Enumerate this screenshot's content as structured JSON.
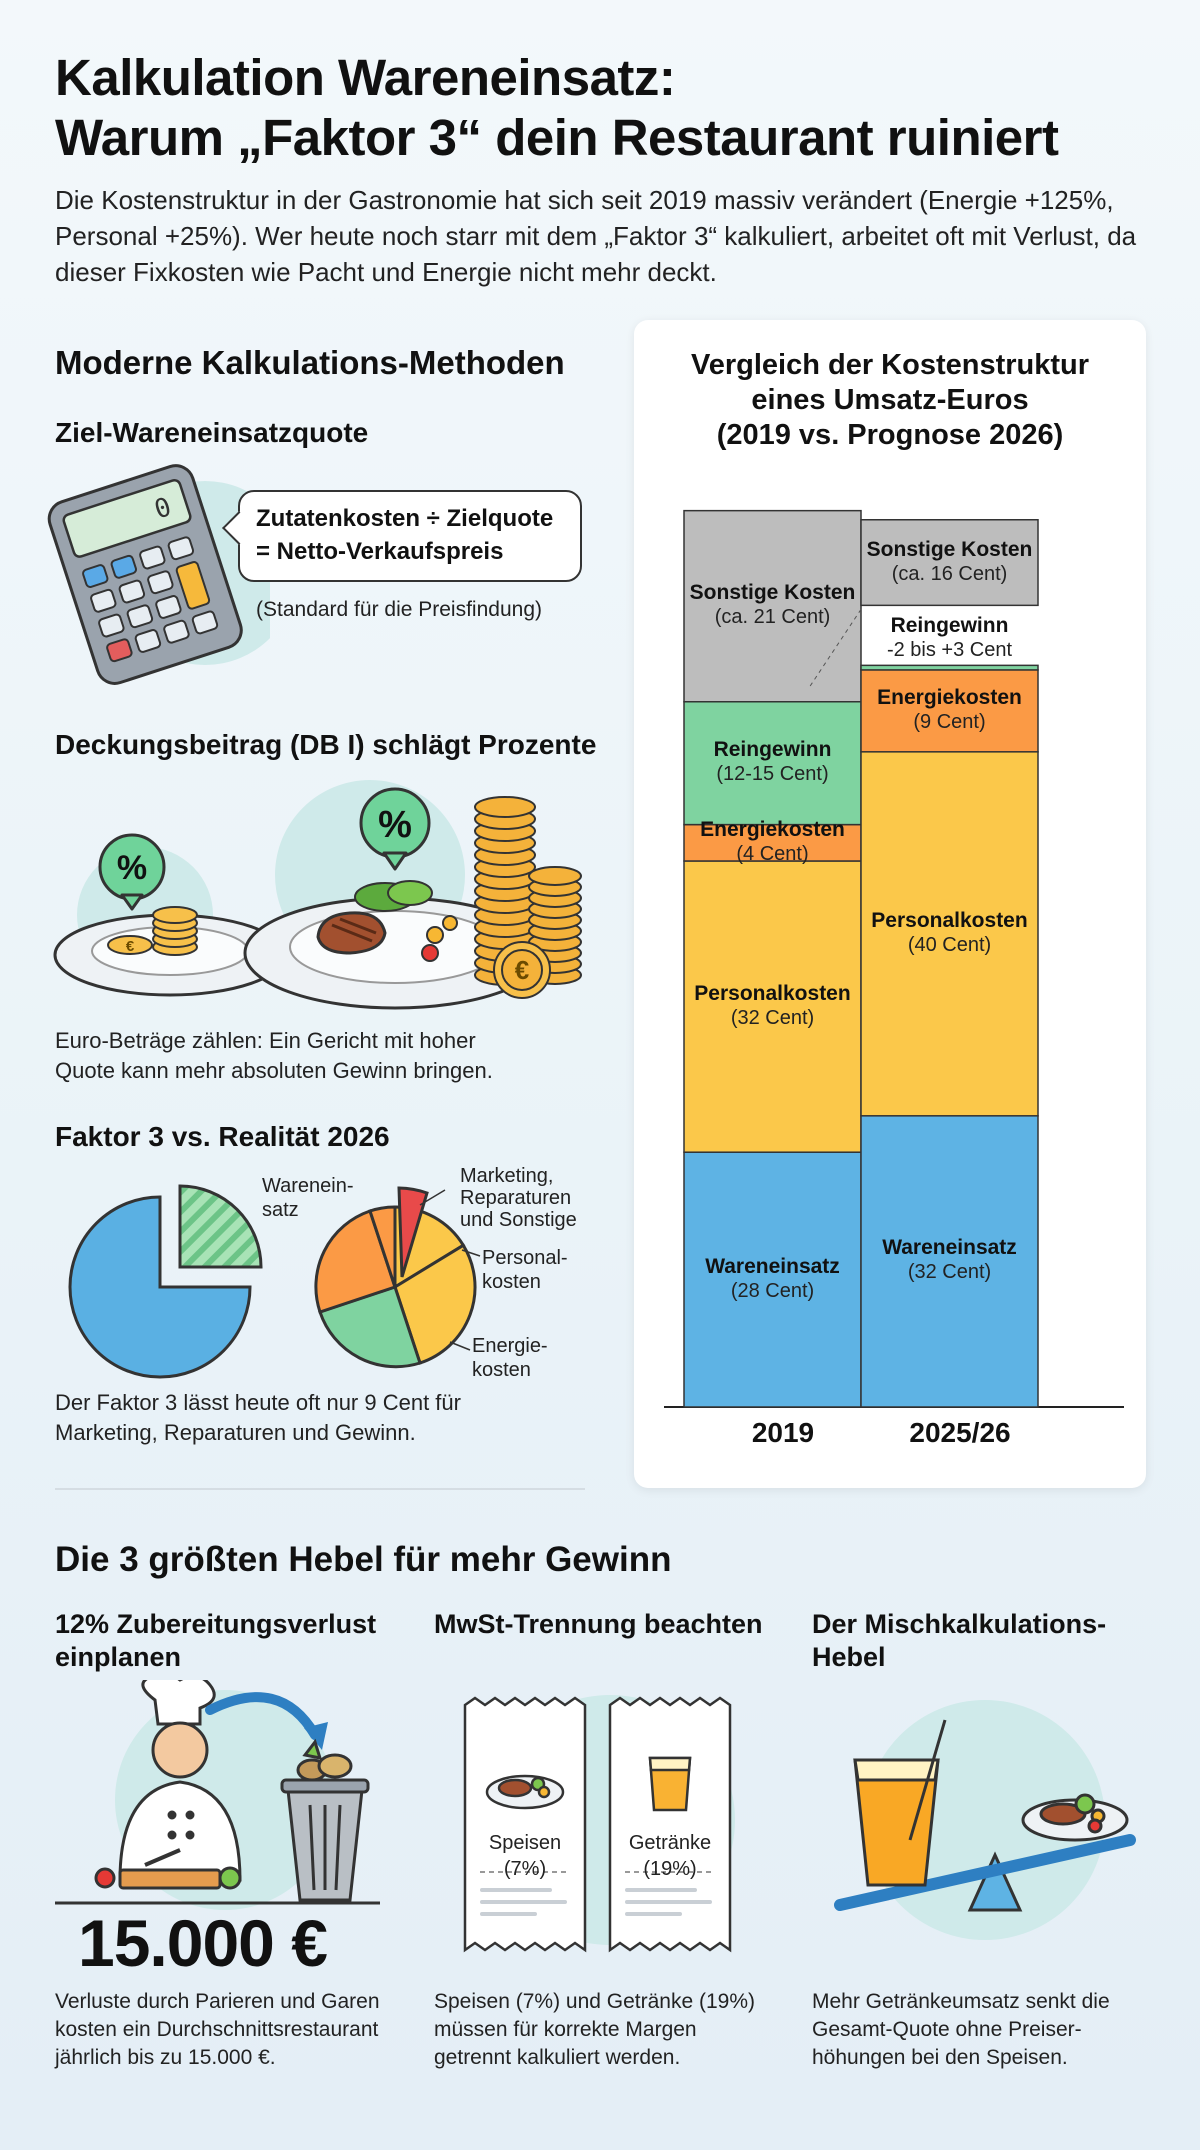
{
  "header": {
    "title_line1": "Kalkulation Wareneinsatz:",
    "title_line2": "Warum „Faktor 3“ dein Restaurant ruiniert",
    "intro": "Die Kostenstruktur in der Gastronomie hat sich seit 2019 massiv verändert (Energie +125%, Personal +25%). Wer heute noch starr mit dem „Faktor 3“ kalkuliert, arbeitet oft mit Verlust, da dieser Fixkosten wie Pacht und Energie nicht mehr deckt."
  },
  "methods": {
    "heading": "Moderne Kalkulations-Methoden",
    "target_quote": {
      "title": "Ziel-Wareneinsatzquote",
      "formula_line1": "Zutatenkosten ÷ Zielquote",
      "formula_line2": "= Netto-Verkaufspreis",
      "note": "(Standard für die Preisfindung)",
      "calculator_display": "0"
    },
    "contribution": {
      "title": "Deckungsbeitrag (DB I) schlägt Prozente",
      "badge_small": "%",
      "badge_large": "%",
      "coin_symbol": "€",
      "text_line1": "Euro-Beträge zählen: Ein Gericht mit hoher",
      "text_line2": "Quote kann mehr absoluten Gewinn bringen."
    },
    "factor": {
      "title": "Faktor 3 vs. Realität 2026",
      "label_wareneinsatz_1": "Warenein-",
      "label_wareneinsatz_2": "satz",
      "label_marketing_1": "Marketing,",
      "label_marketing_2": "Reparaturen",
      "label_marketing_3": "und Sonstige",
      "label_personal_1": "Personal-",
      "label_personal_2": "kosten",
      "label_energie_1": "Energie-",
      "label_energie_2": "kosten",
      "text_line1": "Der Faktor 3 lässt heute oft nur 9 Cent für",
      "text_line2": "Marketing, Reparaturen und Gewinn."
    }
  },
  "chart_data": {
    "type": "bar",
    "stacked": true,
    "title_line1": "Vergleich der Kostenstruktur",
    "title_line2": "eines Umsatz-Euros",
    "title_line3": "(2019 vs. Prognose 2026)",
    "categories": [
      "2019",
      "2025/26"
    ],
    "ylim": [
      0,
      100
    ],
    "series": [
      {
        "name": "Wareneinsatz",
        "color": "#5eb3e4",
        "values": [
          28,
          32
        ],
        "labels": [
          "(28 Cent)",
          "(32 Cent)"
        ]
      },
      {
        "name": "Personalkosten",
        "color": "#fbc84a",
        "values": [
          32,
          40
        ],
        "labels": [
          "(32 Cent)",
          "(40 Cent)"
        ]
      },
      {
        "name": "Energiekosten",
        "color": "#fb9a45",
        "values": [
          4,
          9
        ],
        "labels": [
          "(4 Cent)",
          "(9 Cent)"
        ]
      },
      {
        "name": "Reingewinn",
        "color": "#7fd3a0",
        "values": [
          13.5,
          0.5
        ],
        "labels": [
          "(12-15 Cent)",
          "-2 bis +3 Cent"
        ]
      },
      {
        "name": "Sonstige Kosten",
        "color": "#bdbdbd",
        "values": [
          21,
          16
        ],
        "labels": [
          "(ca. 21 Cent)",
          "(ca. 16 Cent)"
        ]
      }
    ]
  },
  "levers": {
    "heading": "Die 3 größten Hebel für mehr Gewinn",
    "items": [
      {
        "title_line1": "12% Zubereitungsverlust",
        "title_line2": "einplanen",
        "big_number": "15.000 €",
        "text_line1": "Verluste durch Parieren und Garen",
        "text_line2": "kosten ein Durchschnittsrestaurant",
        "text_line3": "jährlich bis zu 15.000 €."
      },
      {
        "title_line1": "MwSt-Trennung beachten",
        "receipt_food": "Speisen",
        "receipt_food_rate": "(7%)",
        "receipt_drinks": "Getränke",
        "receipt_drinks_rate": "(19%)",
        "text_line1": "Speisen (7%) und Getränke (19%)",
        "text_line2": "müssen für korrekte Margen",
        "text_line3": "getrennt kalkuliert werden."
      },
      {
        "title_line1": "Der Mischkalkulations-",
        "title_line2": "Hebel",
        "text_line1": "Mehr Getränkeumsatz senkt die",
        "text_line2": "Gesamt-Quote ohne Preiser-",
        "text_line3": "höhungen bei den Speisen."
      }
    ]
  }
}
